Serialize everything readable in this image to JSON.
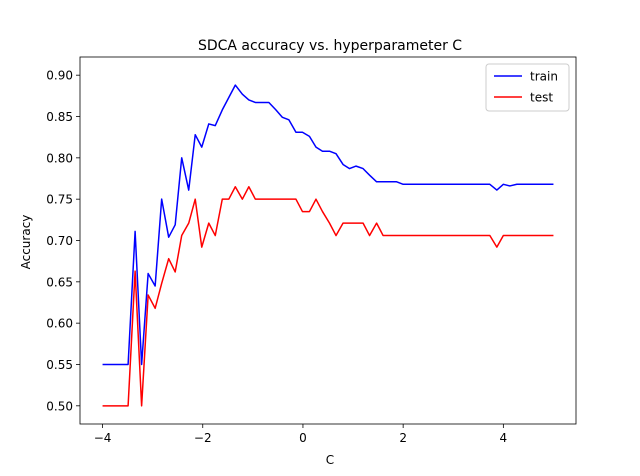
{
  "chart_data": {
    "type": "line",
    "title": "SDCA accuracy vs. hyperparameter C",
    "xlabel": "C",
    "ylabel": "Accuracy",
    "xlim": [
      -4.45,
      5.45
    ],
    "ylim": [
      0.478,
      0.922
    ],
    "xticks": [
      -4,
      -2,
      0,
      2,
      4
    ],
    "xtick_labels": [
      "−4",
      "−2",
      "0",
      "2",
      "4"
    ],
    "yticks": [
      0.5,
      0.55,
      0.6,
      0.65,
      0.7,
      0.75,
      0.8,
      0.85,
      0.9
    ],
    "ytick_labels": [
      "0.50",
      "0.55",
      "0.60",
      "0.65",
      "0.70",
      "0.75",
      "0.80",
      "0.85",
      "0.90"
    ],
    "grid": false,
    "legend_position": "top-right",
    "x": [
      -4.0,
      -3.66,
      -3.49,
      -3.35,
      -3.22,
      -3.09,
      -2.95,
      -2.82,
      -2.68,
      -2.55,
      -2.42,
      -2.28,
      -2.15,
      -2.02,
      -1.88,
      -1.75,
      -1.61,
      -1.48,
      -1.35,
      -1.21,
      -1.08,
      -0.95,
      -0.81,
      -0.68,
      -0.54,
      -0.41,
      -0.28,
      -0.14,
      -0.01,
      0.13,
      0.26,
      0.39,
      0.53,
      0.66,
      0.8,
      0.93,
      1.06,
      1.2,
      1.33,
      1.47,
      1.6,
      1.73,
      1.87,
      2.0,
      3.73,
      3.87,
      4.0,
      4.13,
      4.27,
      4.4,
      5.0
    ],
    "series": [
      {
        "name": "train",
        "color": "#0000ff",
        "values": [
          0.55,
          0.55,
          0.55,
          0.711,
          0.55,
          0.66,
          0.645,
          0.75,
          0.704,
          0.719,
          0.8,
          0.761,
          0.828,
          0.813,
          0.841,
          0.839,
          0.858,
          0.873,
          0.888,
          0.877,
          0.87,
          0.867,
          0.867,
          0.867,
          0.858,
          0.849,
          0.846,
          0.831,
          0.831,
          0.826,
          0.813,
          0.808,
          0.808,
          0.805,
          0.792,
          0.787,
          0.79,
          0.787,
          0.779,
          0.771,
          0.771,
          0.771,
          0.771,
          0.768,
          0.768,
          0.761,
          0.768,
          0.766,
          0.768,
          0.768,
          0.768
        ]
      },
      {
        "name": "test",
        "color": "#ff0000",
        "values": [
          0.5,
          0.5,
          0.5,
          0.663,
          0.5,
          0.634,
          0.618,
          0.648,
          0.678,
          0.662,
          0.706,
          0.721,
          0.75,
          0.692,
          0.721,
          0.706,
          0.75,
          0.75,
          0.765,
          0.75,
          0.765,
          0.75,
          0.75,
          0.75,
          0.75,
          0.75,
          0.75,
          0.75,
          0.735,
          0.735,
          0.75,
          0.735,
          0.721,
          0.706,
          0.721,
          0.721,
          0.721,
          0.721,
          0.706,
          0.721,
          0.706,
          0.706,
          0.706,
          0.706,
          0.706,
          0.692,
          0.706,
          0.706,
          0.706,
          0.706,
          0.706
        ]
      }
    ]
  }
}
